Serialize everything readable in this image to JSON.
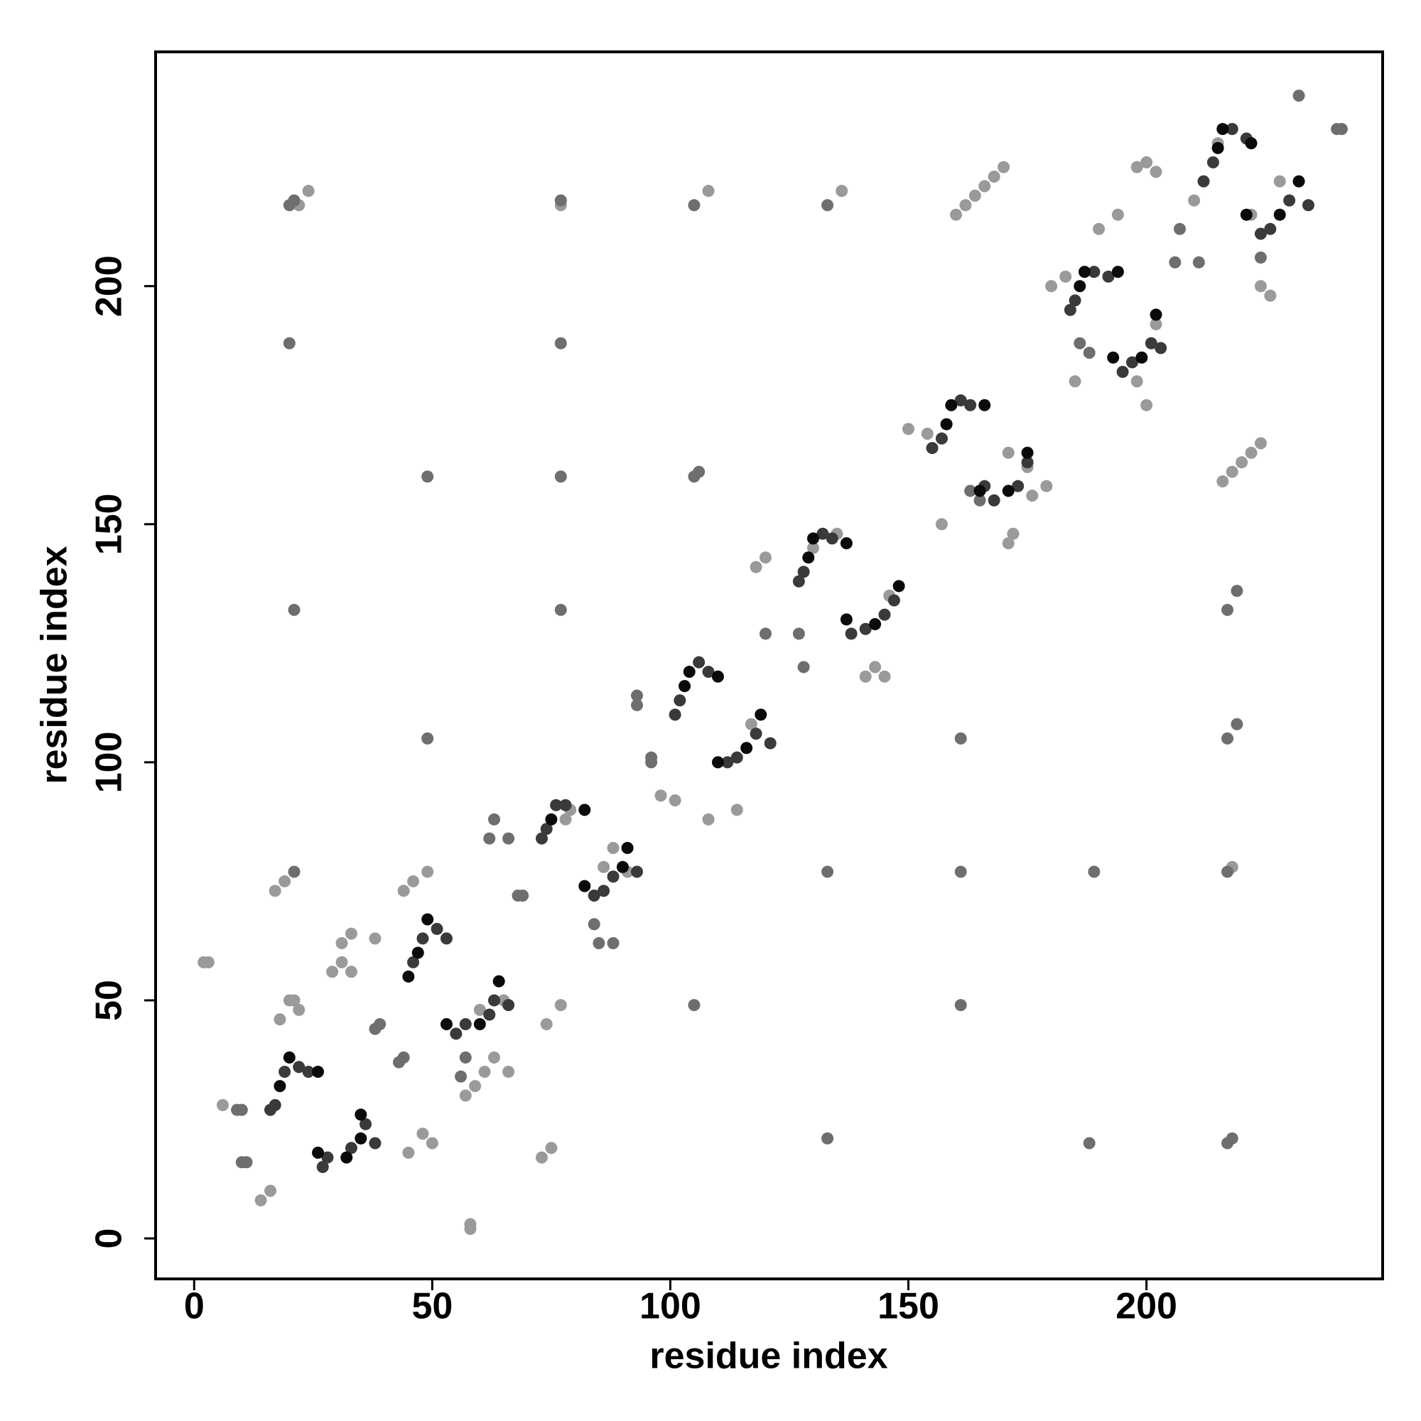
{
  "chart_data": {
    "type": "scatter",
    "xlabel": "residue index",
    "ylabel": "residue index",
    "xlim": [
      -8.1,
      249.6
    ],
    "ylim": [
      -8.5,
      249.2
    ],
    "xticks": [
      0,
      50,
      100,
      150,
      200
    ],
    "yticks": [
      0,
      50,
      100,
      150,
      200
    ],
    "series": [
      {
        "color": "#9a9a9a",
        "x": [
          3,
          2,
          6,
          17,
          19,
          16,
          18,
          20,
          22,
          21,
          31,
          33,
          31,
          33,
          29,
          38,
          44,
          46,
          49,
          45,
          48,
          50,
          57,
          59,
          61,
          63,
          66,
          58,
          58,
          73,
          75,
          74,
          77,
          60,
          65,
          78,
          79,
          88,
          86,
          91,
          98,
          101,
          117,
          108,
          114,
          118,
          120,
          130,
          135,
          141,
          143,
          145,
          146,
          150,
          154,
          157,
          171,
          175,
          172,
          171,
          176,
          179,
          180,
          183,
          185,
          190,
          194,
          200,
          198,
          202,
          198,
          200,
          202,
          210,
          215,
          218,
          216,
          218,
          220,
          222,
          224,
          160,
          162,
          164,
          166,
          168,
          170,
          22,
          24,
          77,
          108,
          136,
          218,
          222,
          224,
          226,
          228,
          14
        ],
        "y": [
          58,
          58,
          28,
          73,
          75,
          10,
          46,
          50,
          48,
          50,
          62,
          64,
          58,
          56,
          56,
          63,
          73,
          75,
          77,
          18,
          22,
          20,
          30,
          32,
          35,
          38,
          35,
          2,
          3,
          17,
          19,
          45,
          49,
          48,
          50,
          88,
          90,
          82,
          78,
          77,
          93,
          92,
          108,
          88,
          90,
          141,
          143,
          145,
          148,
          118,
          120,
          118,
          135,
          170,
          169,
          150,
          165,
          162,
          148,
          146,
          156,
          158,
          200,
          202,
          180,
          212,
          215,
          175,
          180,
          192,
          225,
          226,
          224,
          218,
          230,
          233,
          159,
          161,
          163,
          165,
          167,
          215,
          217,
          219,
          221,
          223,
          225,
          217,
          220,
          217,
          220,
          220,
          78,
          215,
          200,
          198,
          222,
          8
        ]
      },
      {
        "color": "#6e6e6e",
        "x": [
          10,
          11,
          9,
          10,
          20,
          21,
          20,
          21,
          21,
          49,
          49,
          77,
          77,
          77,
          77,
          105,
          105,
          106,
          105,
          133,
          133,
          133,
          161,
          161,
          161,
          188,
          189,
          217,
          218,
          217,
          217,
          217,
          219,
          219,
          232,
          240,
          241,
          43,
          44,
          38,
          39,
          84,
          85,
          88,
          127,
          128,
          120,
          186,
          188,
          163,
          165,
          68,
          69,
          62,
          63,
          66,
          93,
          93,
          96,
          96,
          206,
          207,
          211,
          224,
          57,
          56
        ],
        "y": [
          16,
          16,
          27,
          27,
          217,
          218,
          188,
          132,
          77,
          160,
          105,
          218,
          188,
          160,
          132,
          217,
          160,
          161,
          49,
          217,
          77,
          21,
          77,
          49,
          105,
          20,
          77,
          20,
          21,
          77,
          105,
          132,
          108,
          136,
          240,
          233,
          233,
          37,
          38,
          44,
          45,
          66,
          62,
          62,
          127,
          120,
          127,
          188,
          186,
          157,
          155,
          72,
          72,
          84,
          88,
          84,
          112,
          114,
          100,
          101,
          205,
          212,
          205,
          206,
          38,
          34
        ]
      },
      {
        "color": "#3a3a3a",
        "x": [
          16,
          17,
          19,
          22,
          24,
          27,
          28,
          33,
          36,
          38,
          46,
          48,
          51,
          53,
          55,
          57,
          62,
          63,
          66,
          73,
          74,
          76,
          78,
          84,
          86,
          88,
          93,
          101,
          102,
          106,
          108,
          112,
          114,
          118,
          121,
          127,
          128,
          132,
          134,
          138,
          141,
          145,
          147,
          155,
          157,
          161,
          163,
          166,
          168,
          173,
          175,
          184,
          185,
          189,
          192,
          195,
          197,
          201,
          203,
          212,
          214,
          218,
          221,
          224,
          226,
          230,
          234
        ],
        "y": [
          27,
          28,
          35,
          36,
          35,
          15,
          17,
          19,
          24,
          20,
          58,
          63,
          65,
          63,
          43,
          45,
          47,
          50,
          49,
          84,
          86,
          91,
          91,
          72,
          73,
          76,
          77,
          110,
          113,
          121,
          119,
          100,
          101,
          106,
          104,
          138,
          140,
          148,
          147,
          127,
          128,
          131,
          134,
          166,
          168,
          176,
          175,
          158,
          155,
          158,
          163,
          195,
          197,
          203,
          202,
          182,
          184,
          188,
          187,
          222,
          226,
          233,
          231,
          211,
          212,
          218,
          217
        ]
      },
      {
        "color": "#0a0a0a",
        "x": [
          18,
          20,
          26,
          26,
          32,
          35,
          35,
          45,
          47,
          49,
          53,
          60,
          64,
          75,
          82,
          82,
          90,
          91,
          103,
          104,
          110,
          110,
          116,
          119,
          129,
          130,
          137,
          137,
          143,
          148,
          158,
          159,
          166,
          165,
          171,
          175,
          186,
          187,
          194,
          193,
          199,
          202,
          215,
          216,
          222,
          221,
          228,
          232
        ],
        "y": [
          32,
          38,
          35,
          18,
          17,
          21,
          26,
          55,
          60,
          67,
          45,
          45,
          54,
          88,
          90,
          74,
          78,
          82,
          116,
          119,
          118,
          100,
          103,
          110,
          143,
          147,
          146,
          130,
          129,
          137,
          171,
          175,
          175,
          157,
          157,
          165,
          200,
          203,
          203,
          185,
          185,
          194,
          229,
          233,
          230,
          215,
          215,
          222
        ]
      }
    ]
  }
}
